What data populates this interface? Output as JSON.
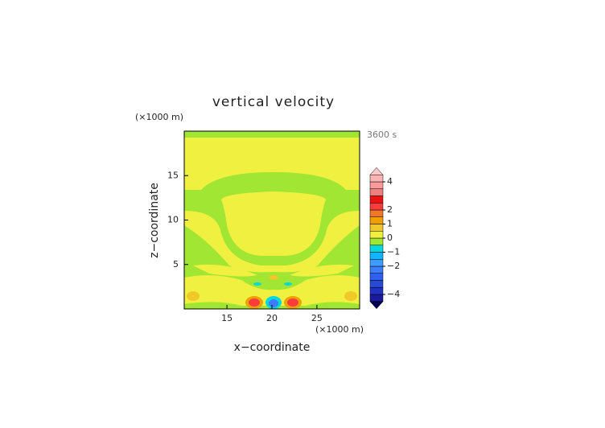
{
  "chart_data": {
    "type": "contour",
    "title": "vertical velocity",
    "x_label": "x−coordinate",
    "y_label": "z−coordinate",
    "x_unit": "(×1000 m)",
    "y_unit": "(×1000 m)",
    "time_label": "3600 s",
    "xlim": [
      10.25,
      29.75
    ],
    "xticks": [
      15,
      20,
      25
    ],
    "ylim": [
      0,
      20
    ],
    "yticks": [
      5,
      10,
      15
    ],
    "colorbar": {
      "levels": [
        -4.5,
        -4,
        -3.5,
        -3,
        -2.5,
        -2,
        -1.5,
        -1,
        -0.5,
        0,
        0.5,
        1,
        1.5,
        2,
        2.5,
        3,
        3.5,
        4,
        4.5
      ],
      "colors": [
        "#1a1a9a",
        "#2030c0",
        "#2848d8",
        "#3060ee",
        "#3c7cff",
        "#3c9cff",
        "#10b4ff",
        "#00d8e0",
        "#a0e632",
        "#f0f040",
        "#f0c828",
        "#f0a000",
        "#f07828",
        "#fa3c3c",
        "#e81414",
        "#f08080",
        "#fa9a9a",
        "#fab4b4"
      ],
      "under_color": "#000050",
      "over_color": "#ffc8c8",
      "ticks": [
        {
          "value": -4,
          "label": "−4"
        },
        {
          "value": -2,
          "label": "−2"
        },
        {
          "value": -1,
          "label": "−1"
        },
        0,
        1,
        2,
        4
      ]
    }
  }
}
